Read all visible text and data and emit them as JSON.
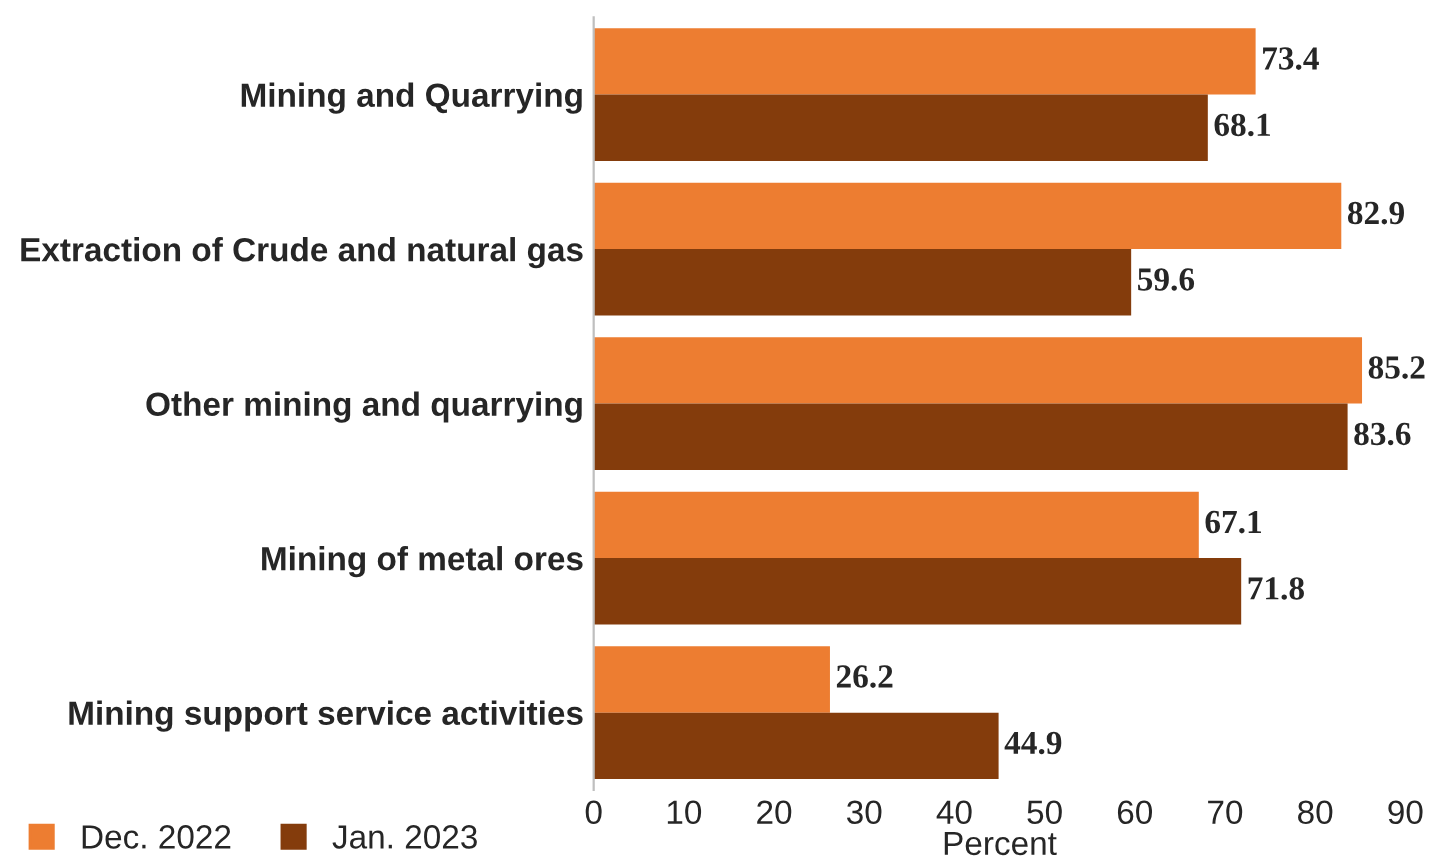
{
  "chart_data": {
    "type": "bar",
    "orientation": "horizontal",
    "xlabel": "Percent",
    "categories": [
      "Mining and Quarrying",
      "Extraction of Crude and natural gas",
      "Other mining and quarrying",
      "Mining of metal ores",
      "Mining support service activities"
    ],
    "series": [
      {
        "name": "Dec. 2022",
        "color": "#ed7d31",
        "values": [
          73.4,
          82.9,
          85.2,
          67.1,
          26.2
        ]
      },
      {
        "name": "Jan. 2023",
        "color": "#843c0c",
        "values": [
          68.1,
          59.6,
          83.6,
          71.8,
          44.9
        ]
      }
    ],
    "xlim": [
      0,
      90
    ],
    "xticks": [
      0,
      10,
      20,
      30,
      40,
      50,
      60,
      70,
      80,
      90
    ],
    "data_labels": true,
    "grid": false,
    "legend": "bottom left"
  }
}
